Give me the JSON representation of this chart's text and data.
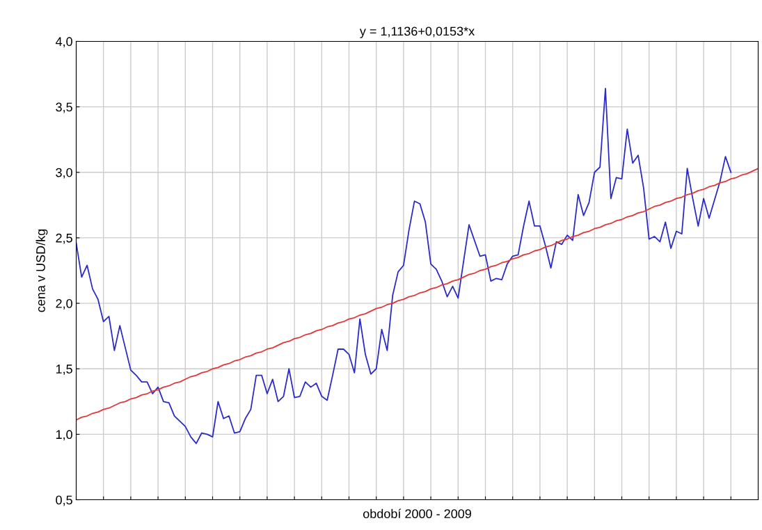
{
  "chart_data": {
    "type": "line",
    "title": "y = 1,1136+0,0153*x",
    "xlabel": "období 2000 - 2009",
    "ylabel": "cena v USD/kg",
    "categories": [
      null,
      null,
      null,
      null,
      null,
      null,
      null,
      null,
      null,
      null,
      null,
      null,
      null,
      null,
      null,
      null,
      null,
      null,
      null,
      null,
      null,
      null,
      null,
      null,
      null,
      null,
      null,
      null,
      null,
      null,
      null,
      null,
      null,
      null,
      null,
      null,
      null,
      null,
      null,
      null,
      null,
      null,
      null,
      null,
      null,
      null,
      null,
      null,
      null,
      null,
      null,
      null,
      null,
      null,
      null,
      null,
      null,
      null,
      null,
      null,
      null,
      null,
      null,
      null,
      null,
      null,
      null,
      null,
      null,
      null,
      null,
      null,
      null,
      null,
      null,
      null,
      null,
      null,
      null,
      null,
      null,
      null,
      null,
      null,
      null,
      null,
      null,
      null,
      null,
      null,
      null,
      null,
      null,
      null,
      null,
      null,
      null,
      null,
      null,
      null,
      null,
      null,
      null,
      null,
      null,
      null,
      null,
      null,
      null,
      null,
      null,
      null,
      null,
      null,
      null,
      null,
      null,
      null,
      null,
      null,
      null,
      null,
      null,
      null,
      null,
      null
    ],
    "series": [
      {
        "color": "#2b2bc8",
        "values": [
          2.46,
          2.2,
          2.29,
          2.11,
          2.03,
          1.86,
          1.9,
          1.64,
          1.83,
          1.66,
          1.49,
          1.45,
          1.4,
          1.4,
          1.31,
          1.36,
          1.25,
          1.24,
          1.14,
          1.1,
          1.06,
          0.98,
          0.93,
          1.01,
          1.0,
          0.98,
          1.25,
          1.12,
          1.14,
          1.01,
          1.02,
          1.12,
          1.19,
          1.45,
          1.45,
          1.31,
          1.42,
          1.25,
          1.29,
          1.5,
          1.28,
          1.29,
          1.4,
          1.36,
          1.39,
          1.29,
          1.26,
          1.45,
          1.65,
          1.65,
          1.61,
          1.47,
          1.88,
          1.61,
          1.46,
          1.5,
          1.8,
          1.64,
          2.06,
          2.24,
          2.29,
          2.56,
          2.78,
          2.76,
          2.62,
          2.3,
          2.26,
          2.17,
          2.05,
          2.13,
          2.04,
          2.32,
          2.6,
          2.48,
          2.36,
          2.37,
          2.17,
          2.19,
          2.18,
          2.3,
          2.36,
          2.37,
          2.59,
          2.78,
          2.59,
          2.59,
          2.44,
          2.27,
          2.47,
          2.45,
          2.52,
          2.48,
          2.83,
          2.67,
          2.77,
          3.0,
          3.04,
          3.64,
          2.8,
          2.96,
          2.95,
          3.33,
          3.07,
          3.13,
          2.88,
          2.49,
          2.51,
          2.47,
          2.62,
          2.42,
          2.55,
          2.53,
          3.03,
          2.8,
          2.59,
          2.8,
          2.65,
          2.79,
          2.93,
          3.12,
          3.0,
          null,
          null,
          null,
          null,
          null
        ]
      },
      {
        "color": "#e03838",
        "values": [
          1.11,
          1.13,
          1.14,
          1.16,
          1.17,
          1.19,
          1.2,
          1.22,
          1.24,
          1.25,
          1.27,
          1.28,
          1.3,
          1.31,
          1.33,
          1.34,
          1.36,
          1.37,
          1.39,
          1.4,
          1.42,
          1.44,
          1.45,
          1.47,
          1.48,
          1.5,
          1.51,
          1.53,
          1.54,
          1.56,
          1.57,
          1.59,
          1.6,
          1.62,
          1.63,
          1.65,
          1.66,
          1.68,
          1.7,
          1.71,
          1.73,
          1.74,
          1.76,
          1.77,
          1.79,
          1.8,
          1.82,
          1.83,
          1.85,
          1.86,
          1.88,
          1.89,
          1.91,
          1.92,
          1.94,
          1.96,
          1.97,
          1.99,
          2.0,
          2.02,
          2.03,
          2.05,
          2.06,
          2.08,
          2.09,
          2.11,
          2.12,
          2.14,
          2.15,
          2.17,
          2.18,
          2.2,
          2.22,
          2.23,
          2.25,
          2.26,
          2.28,
          2.29,
          2.31,
          2.32,
          2.34,
          2.35,
          2.37,
          2.38,
          2.4,
          2.41,
          2.43,
          2.44,
          2.46,
          2.48,
          2.49,
          2.51,
          2.52,
          2.54,
          2.55,
          2.57,
          2.58,
          2.6,
          2.61,
          2.63,
          2.64,
          2.66,
          2.67,
          2.69,
          2.7,
          2.72,
          2.74,
          2.75,
          2.77,
          2.78,
          2.8,
          2.81,
          2.83,
          2.84,
          2.86,
          2.87,
          2.89,
          2.9,
          2.92,
          2.93,
          2.95,
          2.96,
          2.98,
          2.99,
          3.01,
          3.03
        ]
      }
    ],
    "ylim": [
      0.5,
      4.0
    ],
    "yticks": [
      {
        "value": 0.5,
        "label": "0,5"
      },
      {
        "value": 1.0,
        "label": "1,0"
      },
      {
        "value": 1.5,
        "label": "1,5"
      },
      {
        "value": 2.0,
        "label": "2,0"
      },
      {
        "value": 2.5,
        "label": "2,5"
      },
      {
        "value": 3.0,
        "label": "3,0"
      },
      {
        "value": 3.5,
        "label": "3,5"
      },
      {
        "value": 4.0,
        "label": "4,0"
      }
    ],
    "grid": true,
    "tick_labels": "y",
    "line_style": "solid",
    "marker": "none"
  }
}
